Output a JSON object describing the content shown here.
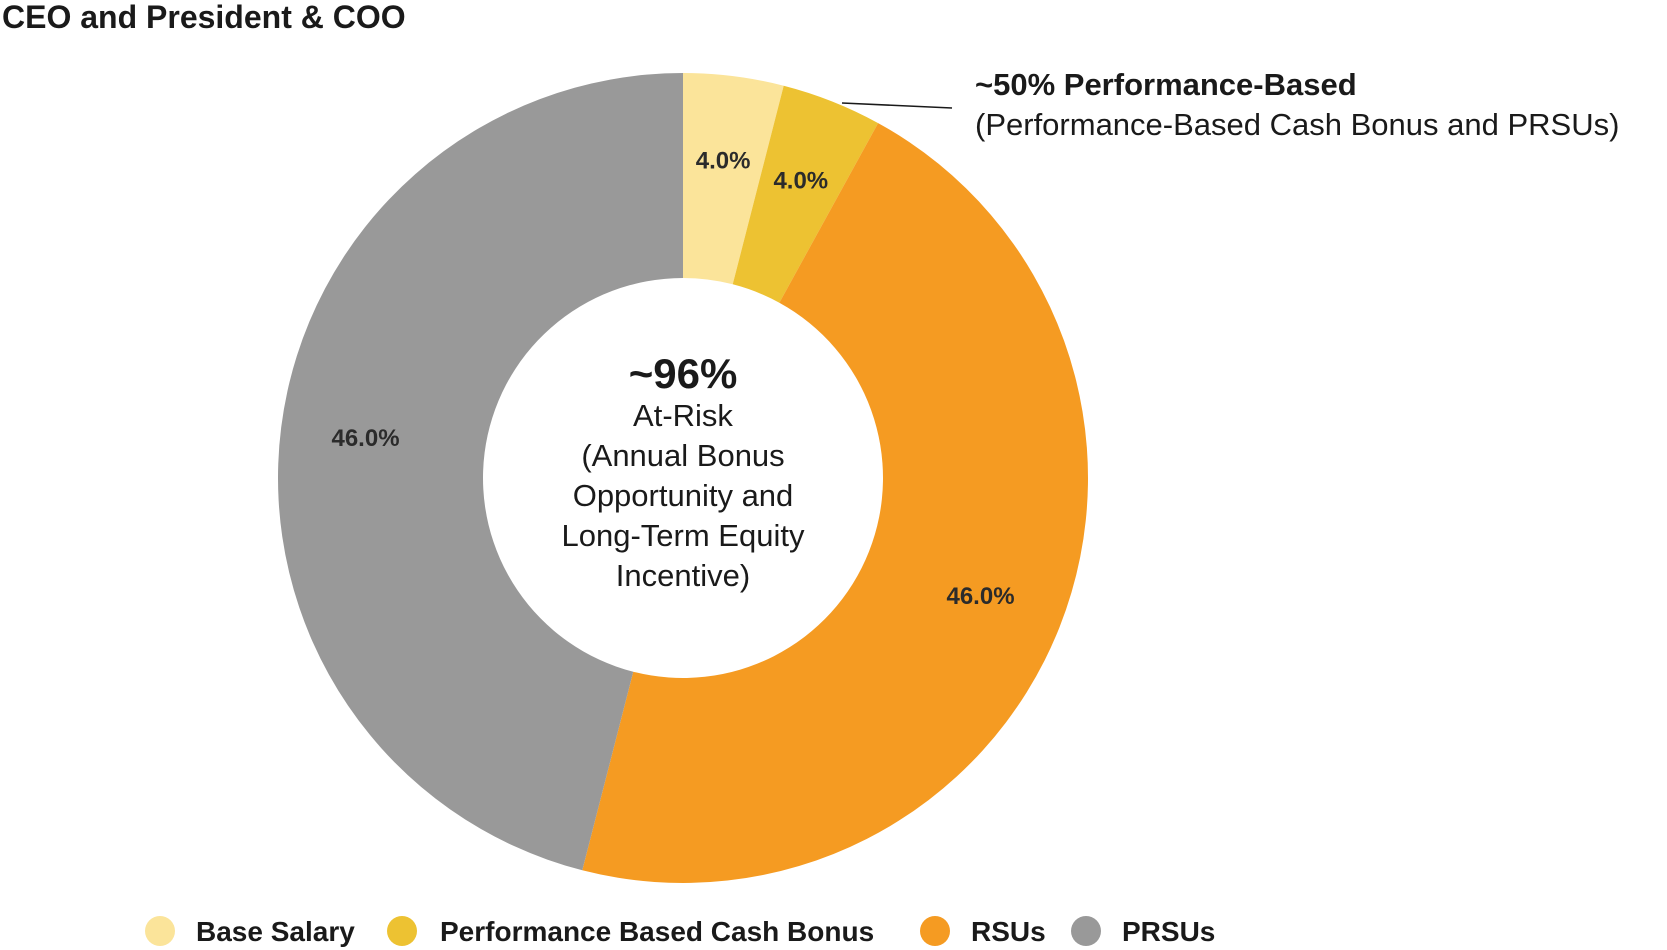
{
  "chart_data": {
    "type": "pie",
    "donut": true,
    "title": "CEO and President & COO",
    "categories": [
      "Base Salary",
      "Performance Based Cash Bonus",
      "RSUs",
      "PRSUs"
    ],
    "values": [
      4.0,
      4.0,
      46.0,
      46.0
    ],
    "value_labels": [
      "4.0%",
      "4.0%",
      "46.0%",
      "46.0%"
    ],
    "colors": [
      "#fbe49a",
      "#edc232",
      "#f59b22",
      "#999999"
    ],
    "start_angle_deg": 0,
    "direction": "clockwise",
    "center_text": {
      "headline": "~96%",
      "lines": [
        "At-Risk",
        "(Annual Bonus",
        "Opportunity and",
        "Long-Term Equity",
        "Incentive)"
      ]
    },
    "annotation": {
      "title": "~50% Performance-Based",
      "subtitle": "(Performance-Based Cash Bonus and PRSUs)"
    },
    "legend": {
      "position": "bottom",
      "items": [
        {
          "label": "Base Salary",
          "color": "#fbe49a"
        },
        {
          "label": "Performance Based Cash Bonus",
          "color": "#edc232"
        },
        {
          "label": "RSUs",
          "color": "#f59b22"
        },
        {
          "label": "PRSUs",
          "color": "#999999"
        }
      ]
    }
  }
}
